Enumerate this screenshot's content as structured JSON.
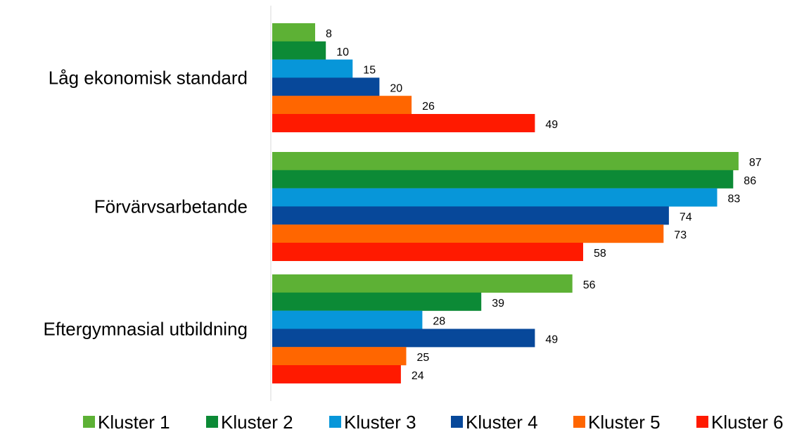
{
  "chart_data": {
    "type": "bar",
    "orientation": "horizontal",
    "categories": [
      "Låg ekonomisk standard",
      "Förvärvsarbetande",
      "Eftergymnasial utbildning"
    ],
    "series": [
      {
        "name": "Kluster 1",
        "color": "#5DB135",
        "values": [
          8,
          87,
          56
        ]
      },
      {
        "name": "Kluster 2",
        "color": "#0C8A36",
        "values": [
          10,
          86,
          39
        ]
      },
      {
        "name": "Kluster 3",
        "color": "#0796D9",
        "values": [
          15,
          83,
          28
        ]
      },
      {
        "name": "Kluster 4",
        "color": "#07489A",
        "values": [
          20,
          74,
          49
        ]
      },
      {
        "name": "Kluster 5",
        "color": "#FF6600",
        "values": [
          26,
          73,
          25
        ]
      },
      {
        "name": "Kluster 6",
        "color": "#FF1A00",
        "values": [
          49,
          58,
          24
        ]
      }
    ],
    "xlim": [
      0,
      100
    ],
    "grid": false,
    "data_labels": true,
    "legend_position": "bottom"
  }
}
